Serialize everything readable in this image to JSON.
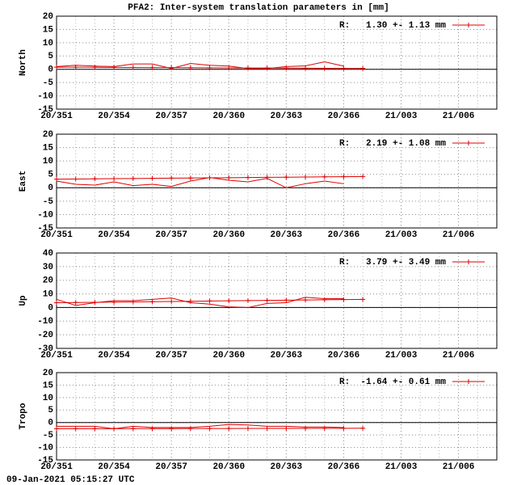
{
  "title": "PFA2: Inter-system translation parameters in [mm]",
  "footer": "09-Jan-2021 05:15:27 UTC",
  "chart_data": [
    {
      "type": "line",
      "ylabel": "North",
      "xlim": [
        351,
        374
      ],
      "xticks": [
        {
          "value": 351,
          "label": "20/351"
        },
        {
          "value": 354,
          "label": "20/354"
        },
        {
          "value": 357,
          "label": "20/357"
        },
        {
          "value": 360,
          "label": "20/360"
        },
        {
          "value": 363,
          "label": "20/363"
        },
        {
          "value": 366,
          "label": "20/366"
        },
        {
          "value": 369,
          "label": "21/003"
        },
        {
          "value": 372,
          "label": "21/006"
        }
      ],
      "ylim": [
        -15,
        20
      ],
      "yticks": [
        -15,
        -10,
        -5,
        0,
        5,
        10,
        15,
        20
      ],
      "grid": true,
      "zero_line": true,
      "series": [
        {
          "color": "#e00000",
          "x": [
            351,
            352,
            353,
            354,
            355,
            356,
            357,
            358,
            359,
            360,
            361,
            362,
            363,
            364,
            365,
            366
          ],
          "values": [
            1,
            1.5,
            1.2,
            1,
            2,
            2,
            0.3,
            2.2,
            1.5,
            1.2,
            0.3,
            0.3,
            1,
            1.3,
            2.8,
            1.2
          ]
        },
        {
          "name": "R:   1.30 +- 1.13 mm",
          "color": "#e00000",
          "marker": "+",
          "x": [
            351,
            352,
            353,
            354,
            355,
            356,
            357,
            358,
            359,
            360,
            361,
            362,
            363,
            364,
            365,
            366,
            367
          ],
          "values": [
            0.8,
            0.77,
            0.74,
            0.71,
            0.68,
            0.65,
            0.62,
            0.59,
            0.56,
            0.53,
            0.5,
            0.47,
            0.44,
            0.41,
            0.38,
            0.35,
            0.32
          ]
        }
      ]
    },
    {
      "type": "line",
      "ylabel": "East",
      "xlim": [
        351,
        374
      ],
      "xticks": [
        {
          "value": 351,
          "label": "20/351"
        },
        {
          "value": 354,
          "label": "20/354"
        },
        {
          "value": 357,
          "label": "20/357"
        },
        {
          "value": 360,
          "label": "20/360"
        },
        {
          "value": 363,
          "label": "20/363"
        },
        {
          "value": 366,
          "label": "20/366"
        },
        {
          "value": 369,
          "label": "21/003"
        },
        {
          "value": 372,
          "label": "21/006"
        }
      ],
      "ylim": [
        -15,
        20
      ],
      "yticks": [
        -15,
        -10,
        -5,
        0,
        5,
        10,
        15,
        20
      ],
      "grid": true,
      "zero_line": true,
      "series": [
        {
          "color": "#e00000",
          "x": [
            351,
            352,
            353,
            354,
            355,
            356,
            357,
            358,
            359,
            360,
            361,
            362,
            363,
            364,
            365,
            366
          ],
          "values": [
            2.5,
            1.3,
            1,
            2.2,
            0.8,
            1.3,
            0.5,
            2.5,
            3.8,
            2.8,
            2.2,
            3.5,
            0,
            1.5,
            2.5,
            1.5
          ]
        },
        {
          "name": "R:   2.19 +- 1.08 mm",
          "color": "#e00000",
          "marker": "+",
          "x": [
            351,
            352,
            353,
            354,
            355,
            356,
            357,
            358,
            359,
            360,
            361,
            362,
            363,
            364,
            365,
            366,
            367
          ],
          "values": [
            3.2,
            3.26,
            3.33,
            3.39,
            3.45,
            3.51,
            3.58,
            3.64,
            3.7,
            3.76,
            3.83,
            3.89,
            3.95,
            4.01,
            4.08,
            4.14,
            4.2
          ]
        }
      ]
    },
    {
      "type": "line",
      "ylabel": "Up",
      "xlim": [
        351,
        374
      ],
      "xticks": [
        {
          "value": 351,
          "label": "20/351"
        },
        {
          "value": 354,
          "label": "20/354"
        },
        {
          "value": 357,
          "label": "20/357"
        },
        {
          "value": 360,
          "label": "20/360"
        },
        {
          "value": 363,
          "label": "20/363"
        },
        {
          "value": 366,
          "label": "20/366"
        },
        {
          "value": 369,
          "label": "21/003"
        },
        {
          "value": 372,
          "label": "21/006"
        }
      ],
      "ylim": [
        -30,
        40
      ],
      "yticks": [
        -30,
        -20,
        -10,
        0,
        10,
        20,
        30,
        40
      ],
      "grid": true,
      "zero_line": true,
      "series": [
        {
          "color": "#e00000",
          "x": [
            351,
            352,
            353,
            354,
            355,
            356,
            357,
            358,
            359,
            360,
            361,
            362,
            363,
            364,
            365,
            366
          ],
          "values": [
            6,
            1.5,
            3.5,
            5,
            5,
            6,
            7,
            3.5,
            2.5,
            0.5,
            0,
            3,
            3.5,
            7.5,
            6.5,
            6.5
          ]
        },
        {
          "name": "R:   3.79 +- 3.49 mm",
          "color": "#e00000",
          "marker": "+",
          "x": [
            351,
            352,
            353,
            354,
            355,
            356,
            357,
            358,
            359,
            360,
            361,
            362,
            363,
            364,
            365,
            366,
            367
          ],
          "values": [
            3.5,
            3.66,
            3.81,
            3.97,
            4.13,
            4.28,
            4.44,
            4.59,
            4.75,
            4.91,
            5.06,
            5.22,
            5.38,
            5.53,
            5.69,
            5.84,
            6
          ]
        }
      ]
    },
    {
      "type": "line",
      "ylabel": "Tropo",
      "xlim": [
        351,
        374
      ],
      "xticks": [
        {
          "value": 351,
          "label": "20/351"
        },
        {
          "value": 354,
          "label": "20/354"
        },
        {
          "value": 357,
          "label": "20/357"
        },
        {
          "value": 360,
          "label": "20/360"
        },
        {
          "value": 363,
          "label": "20/363"
        },
        {
          "value": 366,
          "label": "20/366"
        },
        {
          "value": 369,
          "label": "21/003"
        },
        {
          "value": 372,
          "label": "21/006"
        }
      ],
      "ylim": [
        -15,
        20
      ],
      "yticks": [
        -15,
        -10,
        -5,
        0,
        5,
        10,
        15,
        20
      ],
      "grid": true,
      "zero_line": true,
      "series": [
        {
          "color": "#e00000",
          "x": [
            351,
            352,
            353,
            354,
            355,
            356,
            357,
            358,
            359,
            360,
            361,
            362,
            363,
            364,
            365,
            366
          ],
          "values": [
            -1.5,
            -1.5,
            -1.5,
            -2.5,
            -1.5,
            -2,
            -2,
            -2,
            -1.5,
            -0.8,
            -1,
            -1.5,
            -1.5,
            -1.8,
            -1.8,
            -2
          ]
        },
        {
          "name": "R:  -1.64 +- 0.61 mm",
          "color": "#e00000",
          "marker": "+",
          "x": [
            351,
            352,
            353,
            354,
            355,
            356,
            357,
            358,
            359,
            360,
            361,
            362,
            363,
            364,
            365,
            366,
            367
          ],
          "values": [
            -2.5,
            -2.49,
            -2.48,
            -2.46,
            -2.45,
            -2.44,
            -2.43,
            -2.41,
            -2.4,
            -2.39,
            -2.38,
            -2.36,
            -2.35,
            -2.34,
            -2.33,
            -2.31,
            -2.3
          ]
        }
      ]
    }
  ]
}
